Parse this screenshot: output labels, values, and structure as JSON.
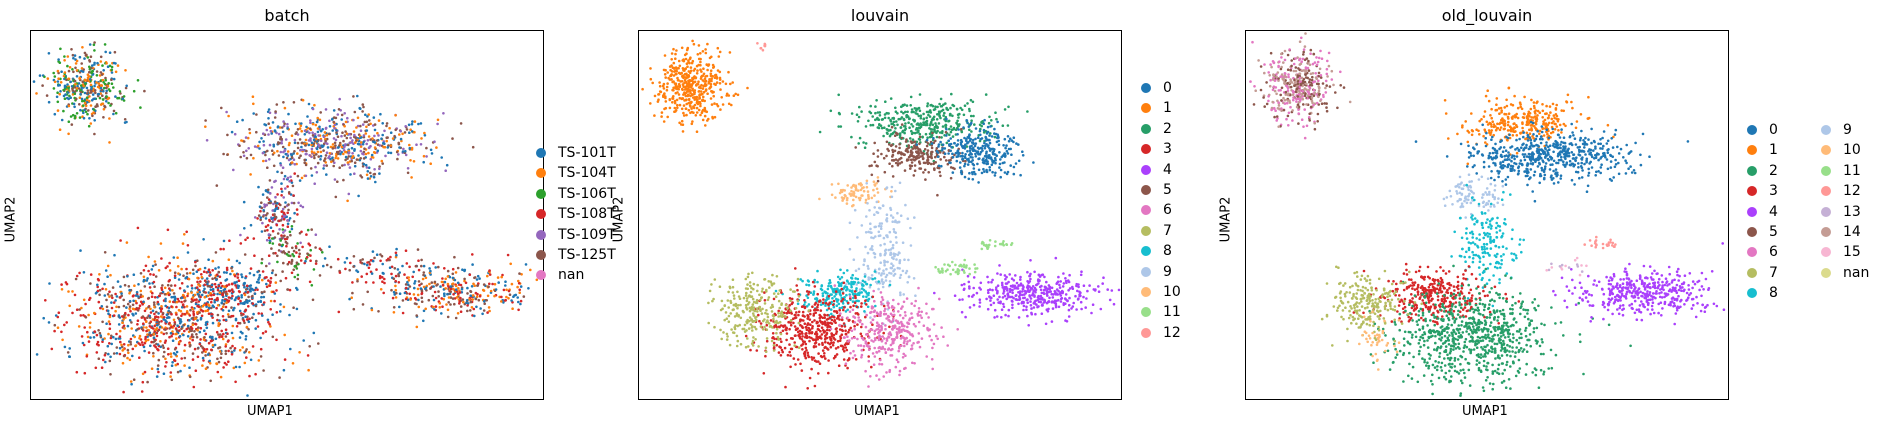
{
  "chart_data": [
    {
      "type": "scatter",
      "title": "batch",
      "xlabel": "UMAP1",
      "ylabel": "UMAP2",
      "grid": false,
      "legend_placement": "right",
      "legend_columns": 1,
      "series": [
        {
          "name": "TS-101T",
          "color": "#1f77b4"
        },
        {
          "name": "TS-104T",
          "color": "#ff7f0e"
        },
        {
          "name": "TS-106T",
          "color": "#2ca02c"
        },
        {
          "name": "TS-108T",
          "color": "#d62728"
        },
        {
          "name": "TS-109T",
          "color": "#9467bd"
        },
        {
          "name": "TS-125T",
          "color": "#8c564b"
        },
        {
          "name": "nan",
          "color": "#e377c2"
        }
      ],
      "clusters": [
        {
          "x": 0.55,
          "y": 9.3,
          "sx": 0.4,
          "sy": 0.55,
          "n": 420,
          "mix": [
            0,
            1,
            5,
            2
          ]
        },
        {
          "x": 5.8,
          "y": 7.6,
          "sx": 1.0,
          "sy": 0.55,
          "n": 700,
          "mix": [
            1,
            4,
            0,
            5
          ]
        },
        {
          "x": 4.6,
          "y": 5.5,
          "sx": 0.25,
          "sy": 0.6,
          "n": 180,
          "mix": [
            5,
            4,
            0,
            3
          ]
        },
        {
          "x": 4.9,
          "y": 4.2,
          "sx": 0.3,
          "sy": 0.35,
          "n": 90,
          "mix": [
            2,
            5,
            3
          ]
        },
        {
          "x": 3.6,
          "y": 3.1,
          "sx": 0.5,
          "sy": 0.35,
          "n": 220,
          "mix": [
            0,
            0,
            3
          ]
        },
        {
          "x": 2.4,
          "y": 2.2,
          "sx": 1.1,
          "sy": 0.9,
          "n": 1100,
          "mix": [
            3,
            0,
            3,
            1,
            5
          ]
        },
        {
          "x": 8.3,
          "y": 3.1,
          "sx": 0.9,
          "sy": 0.35,
          "n": 380,
          "mix": [
            3,
            0,
            5,
            1
          ]
        },
        {
          "x": 6.6,
          "y": 3.9,
          "sx": 0.6,
          "sy": 0.2,
          "n": 80,
          "mix": [
            3,
            0,
            5
          ]
        }
      ]
    },
    {
      "type": "scatter",
      "title": "louvain",
      "xlabel": "UMAP1",
      "ylabel": "UMAP2",
      "grid": false,
      "legend_placement": "right",
      "legend_columns": 1,
      "series": [
        {
          "name": "0",
          "color": "#1f77b4"
        },
        {
          "name": "1",
          "color": "#ff7f0e"
        },
        {
          "name": "2",
          "color": "#279e68"
        },
        {
          "name": "3",
          "color": "#d62728"
        },
        {
          "name": "4",
          "color": "#aa40fc"
        },
        {
          "name": "5",
          "color": "#8c564b"
        },
        {
          "name": "6",
          "color": "#e377c2"
        },
        {
          "name": "7",
          "color": "#b5bd61"
        },
        {
          "name": "8",
          "color": "#17becf"
        },
        {
          "name": "9",
          "color": "#aec7e8"
        },
        {
          "name": "10",
          "color": "#ffbb78"
        },
        {
          "name": "11",
          "color": "#98df8a"
        },
        {
          "name": "12",
          "color": "#ff9896"
        }
      ],
      "clusters": [
        {
          "x": 0.55,
          "y": 9.3,
          "sx": 0.4,
          "sy": 0.55,
          "n": 450,
          "mix": [
            1
          ]
        },
        {
          "x": 5.7,
          "y": 8.2,
          "sx": 0.8,
          "sy": 0.35,
          "n": 380,
          "mix": [
            2
          ]
        },
        {
          "x": 5.6,
          "y": 7.2,
          "sx": 0.45,
          "sy": 0.3,
          "n": 220,
          "mix": [
            5
          ]
        },
        {
          "x": 7.0,
          "y": 7.3,
          "sx": 0.45,
          "sy": 0.4,
          "n": 300,
          "mix": [
            0
          ]
        },
        {
          "x": 4.3,
          "y": 6.1,
          "sx": 0.3,
          "sy": 0.2,
          "n": 80,
          "mix": [
            10
          ]
        },
        {
          "x": 4.9,
          "y": 4.3,
          "sx": 0.3,
          "sy": 0.9,
          "n": 200,
          "mix": [
            9
          ]
        },
        {
          "x": 3.9,
          "y": 3.0,
          "sx": 0.45,
          "sy": 0.3,
          "n": 220,
          "mix": [
            8
          ]
        },
        {
          "x": 3.4,
          "y": 1.9,
          "sx": 0.6,
          "sy": 0.6,
          "n": 500,
          "mix": [
            3
          ]
        },
        {
          "x": 5.0,
          "y": 1.8,
          "sx": 0.5,
          "sy": 0.55,
          "n": 330,
          "mix": [
            6
          ]
        },
        {
          "x": 2.0,
          "y": 2.5,
          "sx": 0.45,
          "sy": 0.55,
          "n": 260,
          "mix": [
            7
          ]
        },
        {
          "x": 8.3,
          "y": 3.0,
          "sx": 0.75,
          "sy": 0.35,
          "n": 400,
          "mix": [
            4
          ]
        },
        {
          "x": 6.5,
          "y": 3.8,
          "sx": 0.3,
          "sy": 0.12,
          "n": 40,
          "mix": [
            11
          ]
        },
        {
          "x": 7.4,
          "y": 4.5,
          "sx": 0.2,
          "sy": 0.08,
          "n": 25,
          "mix": [
            11
          ]
        },
        {
          "x": 2.2,
          "y": 10.6,
          "sx": 0.1,
          "sy": 0.1,
          "n": 8,
          "mix": [
            12
          ]
        }
      ]
    },
    {
      "type": "scatter",
      "title": "old_louvain",
      "xlabel": "UMAP1",
      "ylabel": "UMAP2",
      "grid": false,
      "legend_placement": "right",
      "legend_columns": 2,
      "series": [
        {
          "name": "0",
          "color": "#1f77b4"
        },
        {
          "name": "1",
          "color": "#ff7f0e"
        },
        {
          "name": "2",
          "color": "#279e68"
        },
        {
          "name": "3",
          "color": "#d62728"
        },
        {
          "name": "4",
          "color": "#aa40fc"
        },
        {
          "name": "5",
          "color": "#8c564b"
        },
        {
          "name": "6",
          "color": "#e377c2"
        },
        {
          "name": "7",
          "color": "#b5bd61"
        },
        {
          "name": "8",
          "color": "#17becf"
        },
        {
          "name": "9",
          "color": "#aec7e8"
        },
        {
          "name": "10",
          "color": "#ffbb78"
        },
        {
          "name": "11",
          "color": "#98df8a"
        },
        {
          "name": "12",
          "color": "#ff9896"
        },
        {
          "name": "13",
          "color": "#c5b0d5"
        },
        {
          "name": "14",
          "color": "#c49c94"
        },
        {
          "name": "15",
          "color": "#f7b6d2"
        },
        {
          "name": "nan",
          "color": "#dbdb8d"
        }
      ],
      "clusters": [
        {
          "x": 0.55,
          "y": 9.3,
          "sx": 0.4,
          "sy": 0.55,
          "n": 450,
          "mix": [
            14,
            6,
            5
          ]
        },
        {
          "x": 5.6,
          "y": 8.2,
          "sx": 0.7,
          "sy": 0.35,
          "n": 300,
          "mix": [
            1
          ]
        },
        {
          "x": 6.2,
          "y": 7.2,
          "sx": 0.9,
          "sy": 0.4,
          "n": 550,
          "mix": [
            0
          ]
        },
        {
          "x": 4.5,
          "y": 6.0,
          "sx": 0.3,
          "sy": 0.25,
          "n": 90,
          "mix": [
            9
          ]
        },
        {
          "x": 4.8,
          "y": 4.5,
          "sx": 0.3,
          "sy": 0.7,
          "n": 170,
          "mix": [
            8
          ]
        },
        {
          "x": 3.6,
          "y": 2.9,
          "sx": 0.55,
          "sy": 0.4,
          "n": 330,
          "mix": [
            3
          ]
        },
        {
          "x": 4.5,
          "y": 1.7,
          "sx": 0.85,
          "sy": 0.7,
          "n": 750,
          "mix": [
            2
          ]
        },
        {
          "x": 2.1,
          "y": 2.7,
          "sx": 0.45,
          "sy": 0.45,
          "n": 220,
          "mix": [
            7
          ]
        },
        {
          "x": 2.3,
          "y": 1.6,
          "sx": 0.2,
          "sy": 0.3,
          "n": 40,
          "mix": [
            10
          ]
        },
        {
          "x": 8.3,
          "y": 3.0,
          "sx": 0.75,
          "sy": 0.35,
          "n": 400,
          "mix": [
            4
          ]
        },
        {
          "x": 7.4,
          "y": 4.5,
          "sx": 0.2,
          "sy": 0.08,
          "n": 25,
          "mix": [
            12
          ]
        },
        {
          "x": 6.6,
          "y": 3.9,
          "sx": 0.2,
          "sy": 0.12,
          "n": 18,
          "mix": [
            13,
            15
          ]
        }
      ]
    }
  ]
}
